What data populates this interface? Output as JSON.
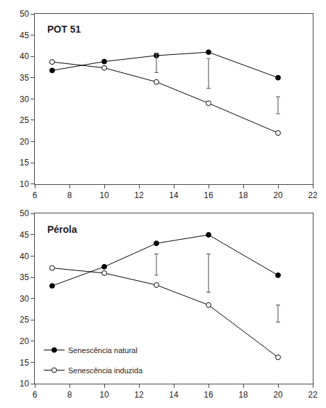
{
  "chart_data": [
    {
      "type": "line",
      "annotations": [
        {
          "text": "POT 51"
        }
      ],
      "x": [
        7,
        10,
        13,
        16,
        20
      ],
      "series": [
        {
          "name": "Senescência natural",
          "color": "black",
          "marker": "circle",
          "values": [
            36.7,
            38.8,
            40.2,
            41.0,
            35.0
          ]
        },
        {
          "name": "Senescência induzida",
          "color": "black",
          "marker": "circle-open",
          "values": [
            38.7,
            37.3,
            34.0,
            29.0,
            22.0
          ]
        },
        {
          "type": "errorbar",
          "color": "#666666",
          "x": [
            13,
            16,
            20
          ],
          "values": [
            38.5,
            36.0,
            28.5
          ],
          "error": [
            2.3,
            3.5,
            2.0
          ]
        }
      ],
      "xlim": [
        6,
        22
      ],
      "xticks": [
        6,
        8,
        10,
        12,
        14,
        16,
        18,
        20,
        22
      ],
      "ylim": [
        10,
        50
      ],
      "yticks": [
        10,
        15,
        20,
        25,
        30,
        35,
        40,
        45,
        50
      ],
      "grid": false
    },
    {
      "type": "line",
      "annotations": [
        {
          "text": "Pérola"
        }
      ],
      "x": [
        7,
        10,
        13,
        16,
        20
      ],
      "series": [
        {
          "name": "Senescência natural",
          "color": "black",
          "marker": "circle",
          "values": [
            33.0,
            37.5,
            43.0,
            45.0,
            35.5
          ]
        },
        {
          "name": "Senescência induzida",
          "color": "black",
          "marker": "circle-open",
          "values": [
            37.2,
            36.0,
            33.2,
            28.5,
            16.2
          ]
        },
        {
          "type": "errorbar",
          "color": "#666666",
          "x": [
            13,
            16,
            20
          ],
          "values": [
            38.0,
            36.0,
            26.5
          ],
          "error": [
            2.5,
            4.5,
            2.0
          ]
        }
      ],
      "xlim": [
        6,
        22
      ],
      "xticks": [
        6,
        8,
        10,
        12,
        14,
        16,
        18,
        20,
        22
      ],
      "ylim": [
        10,
        50
      ],
      "yticks": [
        10,
        15,
        20,
        25,
        30,
        35,
        40,
        45,
        50
      ],
      "grid": false,
      "legend": "lower left"
    }
  ]
}
